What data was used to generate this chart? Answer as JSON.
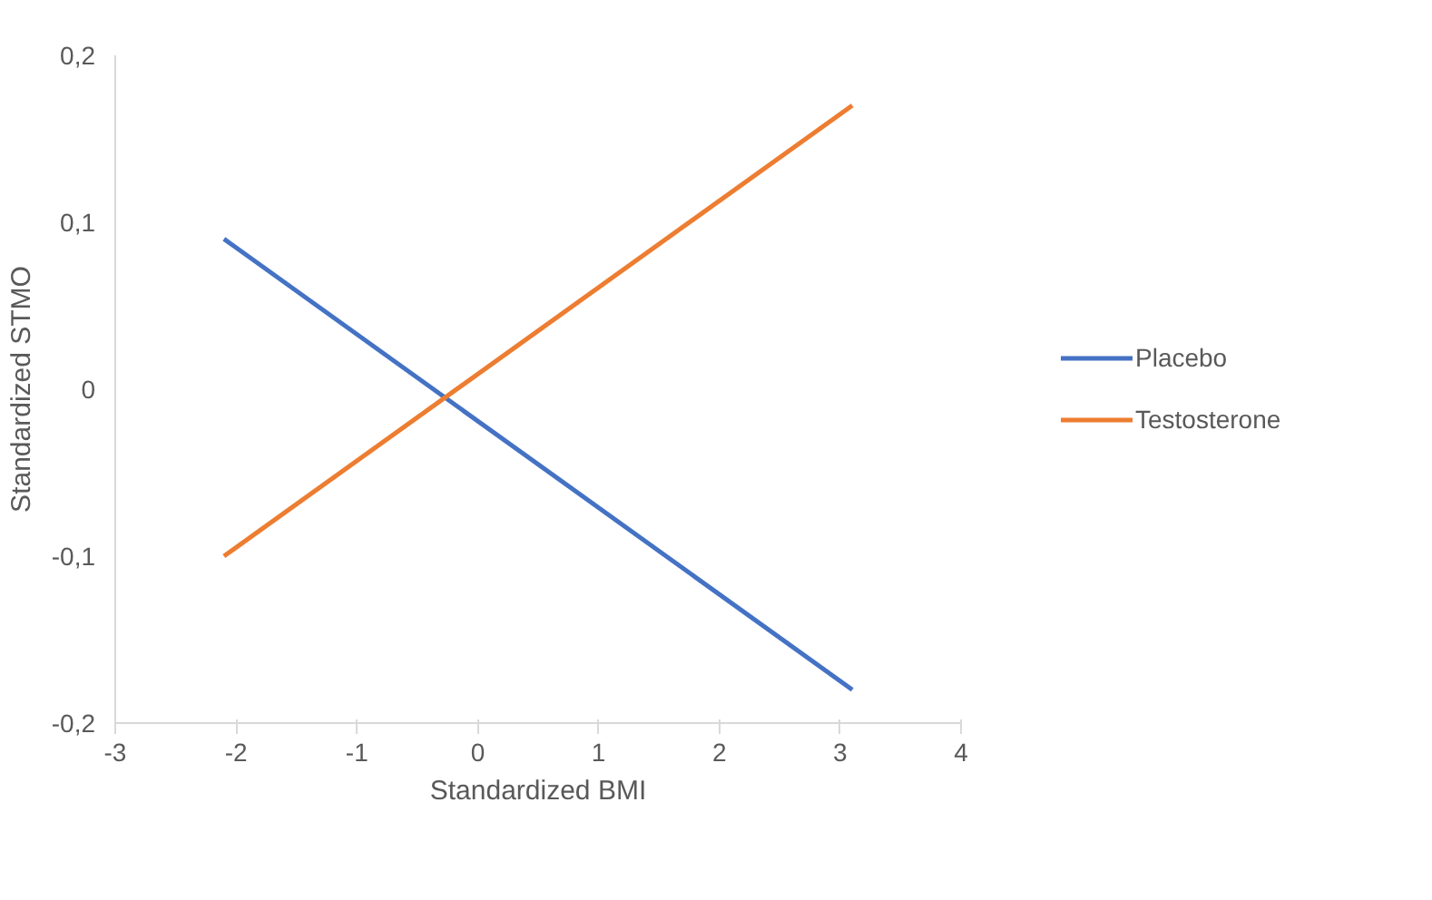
{
  "chart_data": {
    "type": "line",
    "xlabel": "Standardized BMI",
    "ylabel": "Standardized STMO",
    "series": [
      {
        "name": "Placebo",
        "color": "#4472c4",
        "values": [
          0.09,
          -0.18
        ]
      },
      {
        "name": "Testosterone",
        "color": "#ed7d31",
        "values": [
          -0.1,
          0.17
        ]
      }
    ],
    "x": [
      -2.1,
      3.1
    ],
    "xlim": [
      -3,
      4
    ],
    "xticks": [
      -3,
      -2,
      -1,
      0,
      1,
      2,
      3,
      4
    ],
    "ylim": [
      -0.2,
      0.2
    ],
    "yticks": [
      {
        "value": -0.2,
        "label": "-0,2"
      },
      {
        "value": -0.1,
        "label": "-0,1"
      },
      0,
      {
        "value": 0.1,
        "label": "0,1"
      },
      {
        "value": 0.2,
        "label": "0,2"
      }
    ],
    "grid": false,
    "legend": "right",
    "marker": "none",
    "line_style": "solid"
  }
}
